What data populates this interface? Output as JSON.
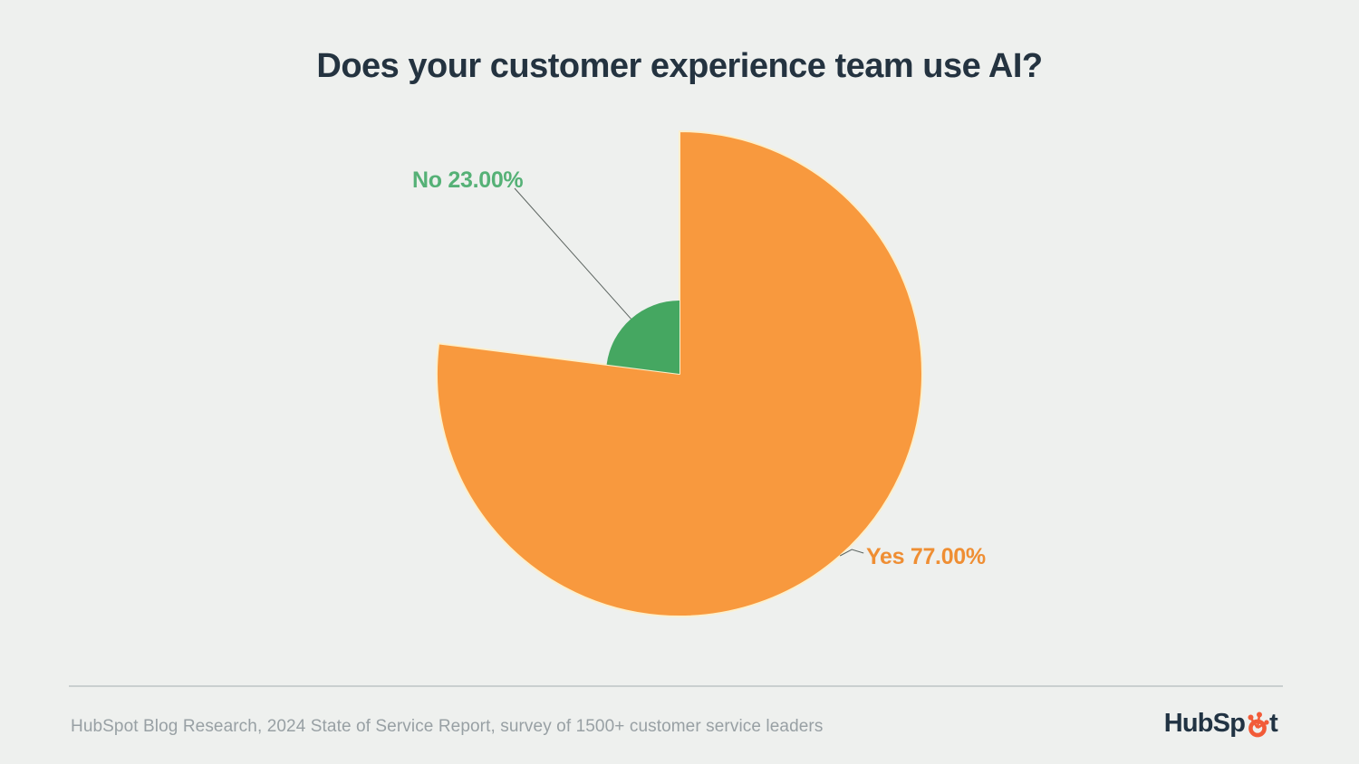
{
  "title": "Does your customer experience team use AI?",
  "chart_data": {
    "type": "pie",
    "title": "Does your customer experience team use AI?",
    "categories": [
      "Yes",
      "No"
    ],
    "values": [
      77.0,
      23.0
    ],
    "slices": [
      {
        "label": "Yes",
        "value": 77.0,
        "display": "Yes 77.00%",
        "color": "#f8993e"
      },
      {
        "label": "No",
        "value": 23.0,
        "display": "No 23.00%",
        "color": "#45a761"
      }
    ],
    "unit": "%",
    "start_angle_deg": 0,
    "direction": "clockwise",
    "legend_position": "none",
    "style": "variable-radius pie, labels connected with leader lines"
  },
  "footer": {
    "source": "HubSpot Blog Research, 2024 State of Service Report, survey of 1500+ customer service leaders",
    "logo_name": "HubSpot",
    "logo_text_pre": "HubSp",
    "logo_text_post": "t"
  },
  "colors": {
    "background": "#eef0ee",
    "title": "#243340",
    "orange": "#f8993e",
    "orange-label": "#ef8e33",
    "green": "#45a761",
    "green-label": "#55b176",
    "slice-stroke": "#fcefcb",
    "leader": "#5c6460",
    "divider": "#c9cfcf",
    "muted": "#98a0a4",
    "dark": "#213343",
    "sprocket": "#f25b38"
  }
}
